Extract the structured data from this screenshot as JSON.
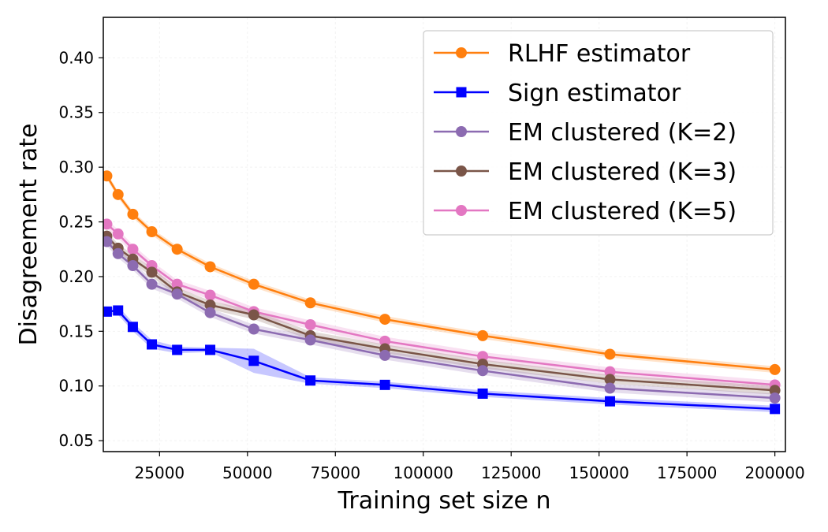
{
  "chart_data": {
    "type": "line",
    "title": "",
    "xlabel": "Training set size n",
    "ylabel": "Disagreement rate",
    "xlim": [
      9000,
      203000
    ],
    "ylim": [
      0.04,
      0.437
    ],
    "xticks": [
      25000,
      50000,
      75000,
      100000,
      125000,
      150000,
      175000,
      200000
    ],
    "yticks": [
      0.05,
      0.1,
      0.15,
      0.2,
      0.25,
      0.3,
      0.35,
      0.4
    ],
    "xtick_labels": [
      "25000",
      "50000",
      "75000",
      "100000",
      "125000",
      "150000",
      "175000",
      "200000"
    ],
    "ytick_labels": [
      "0.05",
      "0.10",
      "0.15",
      "0.20",
      "0.25",
      "0.30",
      "0.35",
      "0.40"
    ],
    "grid": true,
    "legend_position": "top-right",
    "x": [
      10000,
      13200,
      17400,
      22800,
      30000,
      39400,
      51800,
      67900,
      89100,
      116900,
      153100,
      200000
    ],
    "series": [
      {
        "name": "RLHF estimator",
        "color": "#ff7f0e",
        "marker": "circle",
        "values": [
          0.292,
          0.275,
          0.257,
          0.241,
          0.225,
          0.209,
          0.193,
          0.176,
          0.161,
          0.146,
          0.129,
          0.115
        ],
        "band": 0.003
      },
      {
        "name": "Sign estimator",
        "color": "#0000ff",
        "marker": "square",
        "values": [
          0.168,
          0.169,
          0.154,
          0.138,
          0.133,
          0.133,
          0.123,
          0.105,
          0.101,
          0.093,
          0.086,
          0.079
        ],
        "band_lower": [
          0.165,
          0.165,
          0.15,
          0.134,
          0.13,
          0.131,
          0.112,
          0.102,
          0.098,
          0.09,
          0.083,
          0.076
        ],
        "band_upper": [
          0.171,
          0.173,
          0.158,
          0.142,
          0.136,
          0.135,
          0.134,
          0.108,
          0.104,
          0.096,
          0.089,
          0.082
        ]
      },
      {
        "name": "EM clustered (K=2)",
        "color": "#8c6bb1",
        "marker": "circle",
        "values": [
          0.232,
          0.221,
          0.21,
          0.193,
          0.184,
          0.167,
          0.152,
          0.142,
          0.128,
          0.114,
          0.098,
          0.089
        ],
        "band": 0.004
      },
      {
        "name": "EM clustered (K=3)",
        "color": "#7a5548",
        "marker": "circle",
        "values": [
          0.237,
          0.226,
          0.216,
          0.204,
          0.186,
          0.174,
          0.165,
          0.146,
          0.134,
          0.12,
          0.106,
          0.096
        ],
        "band": 0.004
      },
      {
        "name": "EM clustered (K=5)",
        "color": "#e377c2",
        "marker": "circle",
        "values": [
          0.248,
          0.239,
          0.225,
          0.21,
          0.193,
          0.183,
          0.168,
          0.156,
          0.141,
          0.127,
          0.113,
          0.101
        ],
        "band": 0.004
      }
    ]
  }
}
